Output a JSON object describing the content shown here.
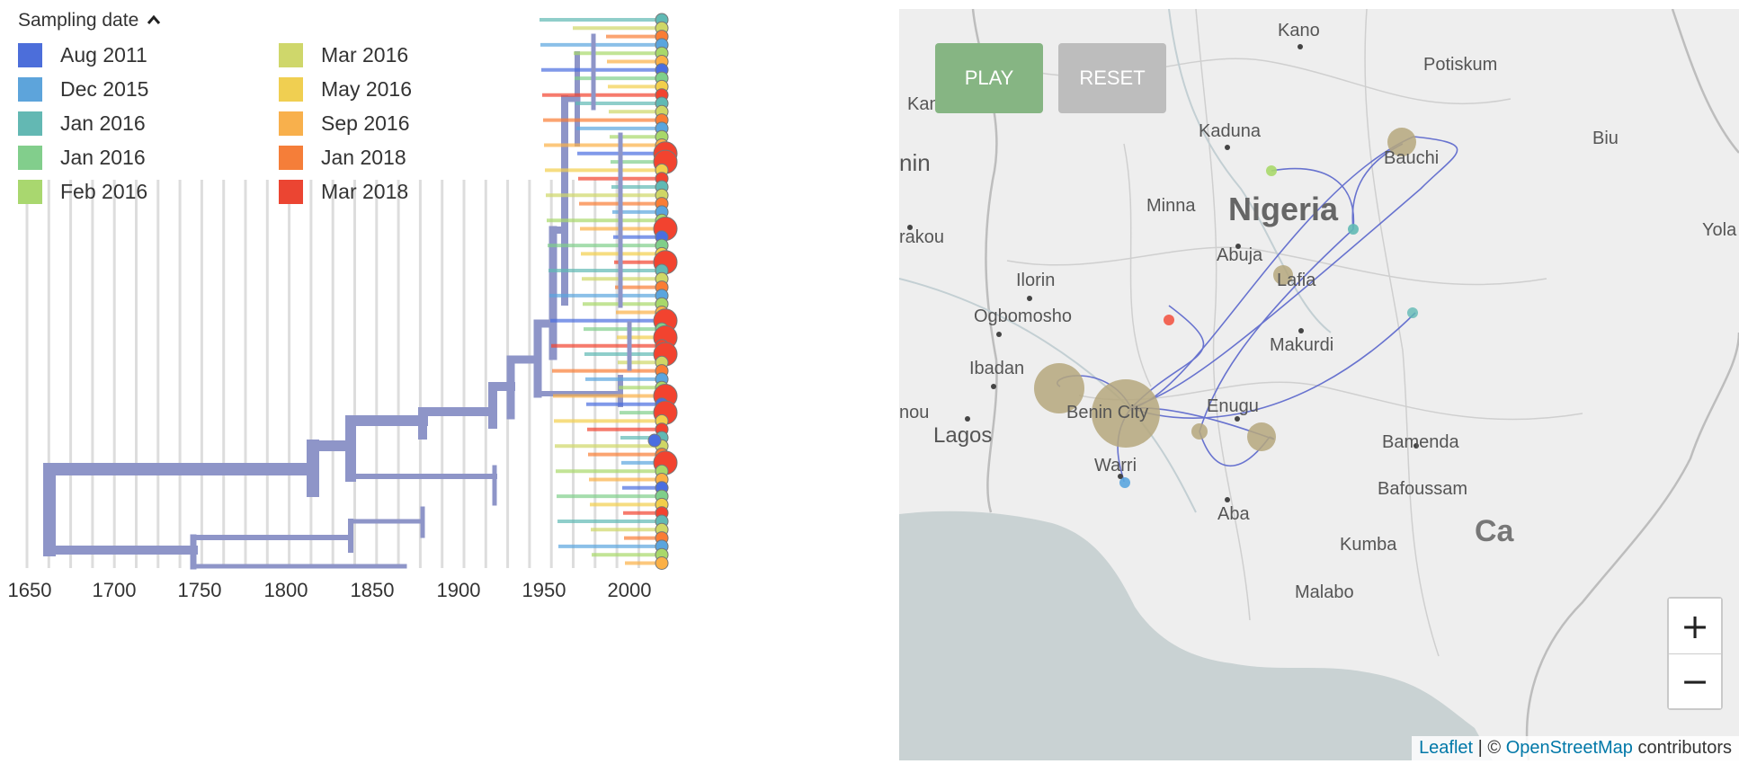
{
  "legend": {
    "title": "Sampling date",
    "items": [
      {
        "label": "Aug 2011",
        "color": "#4a6ee0"
      },
      {
        "label": "Dec 2015",
        "color": "#5aa5de"
      },
      {
        "label": "Jan 2016",
        "color": "#60b9b4"
      },
      {
        "label": "Jan 2016",
        "color": "#7fcf8a"
      },
      {
        "label": "Feb 2016",
        "color": "#a8d86a"
      },
      {
        "label": "Mar 2016",
        "color": "#cfd766"
      },
      {
        "label": "May 2016",
        "color": "#f2cf4b"
      },
      {
        "label": "Sep 2016",
        "color": "#fbb046"
      },
      {
        "label": "Jan 2018",
        "color": "#fa7d34"
      },
      {
        "label": "Mar 2018",
        "color": "#f2432f"
      }
    ]
  },
  "tree": {
    "axis_ticks": [
      "1650",
      "1700",
      "1750",
      "1800",
      "1850",
      "1900",
      "1950",
      "2000"
    ],
    "branch_color": "#8e95c8"
  },
  "map": {
    "play_label": "PLAY",
    "reset_label": "RESET",
    "zoom_in": "+",
    "zoom_out": "−",
    "country_label": "Nigeria",
    "cities": [
      "Kano",
      "Potiskum",
      "Kandi",
      "Kaduna",
      "Bauchi",
      "Biu",
      "nin",
      "Minna",
      "Yola",
      "rakou",
      "Abuja",
      "Lafia",
      "Ilorin",
      "Ogbomosho",
      "Makurdi",
      "Ibadan",
      "Benin City",
      "Enugu",
      "nou",
      "Lagos",
      "Bamenda",
      "Warri",
      "Bafoussam",
      "Aba",
      "Kumba",
      "Ca",
      "Malabo"
    ],
    "attribution": {
      "leaflet": "Leaflet",
      "separator": " | © ",
      "osm": "OpenStreetMap",
      "suffix": " contributors"
    }
  }
}
